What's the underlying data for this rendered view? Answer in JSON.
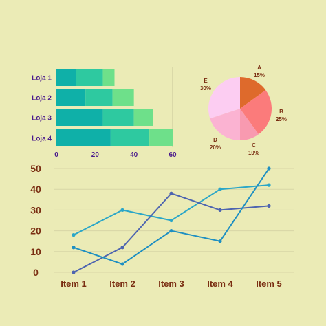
{
  "colors": {
    "background": "#ebebb6",
    "label_purple": "#4a1a8c",
    "label_brown": "#7a2e12",
    "label_teal": "#1a7a7a",
    "bar_dark": "#0fb0a8",
    "bar_mid": "#2ec9a0",
    "bar_light": "#6ee08a",
    "grid": "#d8d6a6",
    "axis_line": "#c9c79a"
  },
  "chart_data": [
    {
      "type": "bar",
      "orientation": "horizontal",
      "stacked": true,
      "categories": [
        "Loja 1",
        "Loja 2",
        "Loja 3",
        "Loja 4"
      ],
      "series": [
        {
          "color": "#0fb0a8",
          "values": [
            10,
            15,
            24,
            28
          ]
        },
        {
          "color": "#2ec9a0",
          "values": [
            14,
            14,
            16,
            20
          ]
        },
        {
          "color": "#6ee08a",
          "values": [
            6,
            11,
            10,
            12
          ]
        }
      ],
      "x_ticks": [
        "0",
        "20",
        "40",
        "60"
      ],
      "xlim": [
        0,
        60
      ],
      "grid": false
    },
    {
      "type": "pie",
      "slices": [
        {
          "label": "A",
          "percent_label": "15%",
          "value": 15,
          "color": "#de6a2c"
        },
        {
          "label": "B",
          "percent_label": "25%",
          "value": 25,
          "color": "#fb7b7b"
        },
        {
          "label": "C",
          "percent_label": "10%",
          "value": 10,
          "color": "#f89ab0"
        },
        {
          "label": "D",
          "percent_label": "20%",
          "value": 20,
          "color": "#fbb3d2"
        },
        {
          "label": "E",
          "percent_label": "30%",
          "value": 30,
          "color": "#fccdf2"
        }
      ]
    },
    {
      "type": "line",
      "categories": [
        "Item 1",
        "Item 2",
        "Item 3",
        "Item 4",
        "Item 5"
      ],
      "series": [
        {
          "color": "#2aa6c8",
          "values": [
            18,
            30,
            25,
            40,
            42
          ]
        },
        {
          "color": "#4d64b0",
          "values": [
            0,
            12,
            38,
            30,
            32
          ]
        },
        {
          "color": "#1e8fc2",
          "values": [
            12,
            4,
            20,
            15,
            50
          ]
        }
      ],
      "y_ticks": [
        "0",
        "10",
        "20",
        "30",
        "40",
        "50"
      ],
      "ylim": [
        0,
        50
      ],
      "grid": true
    }
  ]
}
